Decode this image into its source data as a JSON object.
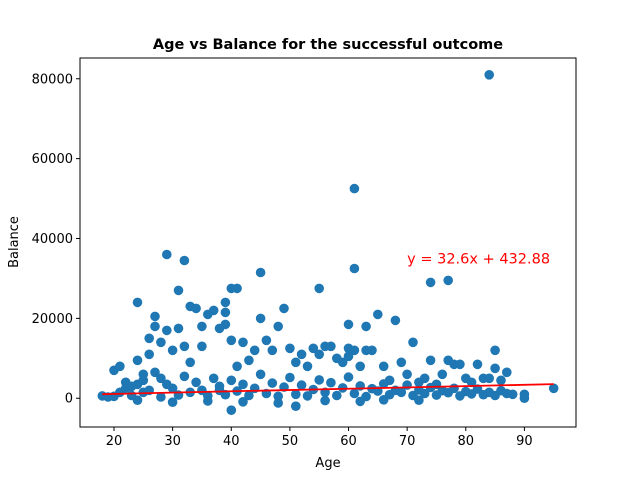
{
  "chart_data": {
    "type": "scatter",
    "title": "Age vs Balance for the successful outcome",
    "xlabel": "Age",
    "ylabel": "Balance",
    "xlim": [
      14.2,
      98.8
    ],
    "ylim": [
      -7200,
      85200
    ],
    "xticks": [
      20,
      30,
      40,
      50,
      60,
      70,
      80,
      90
    ],
    "yticks": [
      0,
      20000,
      40000,
      60000,
      80000
    ],
    "ytick_labels": [
      "0",
      "20000",
      "40000",
      "60000",
      "80000"
    ],
    "grid": false,
    "point_color": "#1f77b4",
    "trend_color": "#ff0000",
    "annotation": {
      "text": "y = 32.6x + 432.88",
      "x": 70,
      "y": 35000,
      "color": "#ff0000"
    },
    "trendline": {
      "slope": 32.6,
      "intercept": 432.88,
      "x_range": [
        18,
        95
      ]
    },
    "points": [
      [
        18,
        600
      ],
      [
        19,
        300
      ],
      [
        20,
        7000
      ],
      [
        21,
        8000
      ],
      [
        22,
        2500
      ],
      [
        23,
        3000
      ],
      [
        24,
        9500
      ],
      [
        24,
        24000
      ],
      [
        25,
        1500
      ],
      [
        25,
        6000
      ],
      [
        26,
        11000
      ],
      [
        26,
        15000
      ],
      [
        27,
        18000
      ],
      [
        27,
        20500
      ],
      [
        28,
        14000
      ],
      [
        28,
        5000
      ],
      [
        29,
        36000
      ],
      [
        29,
        17000
      ],
      [
        30,
        12000
      ],
      [
        31,
        27000
      ],
      [
        31,
        17500
      ],
      [
        32,
        34500
      ],
      [
        32,
        13000
      ],
      [
        33,
        23000
      ],
      [
        33,
        9000
      ],
      [
        34,
        22500
      ],
      [
        35,
        18000
      ],
      [
        35,
        13000
      ],
      [
        36,
        21000
      ],
      [
        37,
        22000
      ],
      [
        38,
        17500
      ],
      [
        38,
        2000
      ],
      [
        39,
        24000
      ],
      [
        39,
        18500
      ],
      [
        39,
        21500
      ],
      [
        40,
        27500
      ],
      [
        40,
        -3000
      ],
      [
        40,
        14500
      ],
      [
        41,
        27500
      ],
      [
        41,
        8000
      ],
      [
        42,
        14000
      ],
      [
        43,
        9500
      ],
      [
        44,
        12000
      ],
      [
        45,
        31500
      ],
      [
        45,
        20000
      ],
      [
        46,
        14500
      ],
      [
        47,
        12000
      ],
      [
        48,
        18000
      ],
      [
        49,
        22500
      ],
      [
        50,
        12500
      ],
      [
        51,
        9000
      ],
      [
        52,
        11000
      ],
      [
        53,
        8000
      ],
      [
        54,
        12500
      ],
      [
        55,
        27500
      ],
      [
        55,
        11000
      ],
      [
        56,
        13000
      ],
      [
        57,
        13000
      ],
      [
        58,
        10000
      ],
      [
        59,
        9000
      ],
      [
        60,
        18500
      ],
      [
        60,
        12500
      ],
      [
        60,
        10500
      ],
      [
        61,
        52500
      ],
      [
        61,
        32500
      ],
      [
        61,
        12000
      ],
      [
        62,
        8000
      ],
      [
        63,
        12000
      ],
      [
        63,
        18000
      ],
      [
        64,
        12000
      ],
      [
        65,
        21000
      ],
      [
        66,
        8000
      ],
      [
        67,
        4500
      ],
      [
        68,
        19500
      ],
      [
        69,
        9000
      ],
      [
        70,
        6000
      ],
      [
        71,
        14000
      ],
      [
        72,
        4000
      ],
      [
        73,
        5000
      ],
      [
        74,
        29000
      ],
      [
        74,
        9500
      ],
      [
        75,
        3500
      ],
      [
        76,
        6000
      ],
      [
        77,
        29500
      ],
      [
        77,
        9500
      ],
      [
        78,
        8500
      ],
      [
        79,
        8500
      ],
      [
        80,
        5000
      ],
      [
        81,
        4000
      ],
      [
        82,
        8500
      ],
      [
        83,
        5000
      ],
      [
        84,
        81000
      ],
      [
        84,
        5000
      ],
      [
        85,
        12000
      ],
      [
        85,
        7500
      ],
      [
        86,
        4500
      ],
      [
        87,
        6500
      ],
      [
        88,
        1000
      ],
      [
        90,
        1000
      ],
      [
        90,
        0
      ],
      [
        95,
        2500
      ],
      [
        20,
        500
      ],
      [
        21,
        1500
      ],
      [
        22,
        4000
      ],
      [
        23,
        700
      ],
      [
        24,
        3500
      ],
      [
        25,
        4500
      ],
      [
        26,
        2000
      ],
      [
        27,
        6500
      ],
      [
        28,
        300
      ],
      [
        29,
        3500
      ],
      [
        30,
        2500
      ],
      [
        31,
        800
      ],
      [
        32,
        5500
      ],
      [
        33,
        1500
      ],
      [
        34,
        4000
      ],
      [
        35,
        2000
      ],
      [
        36,
        600
      ],
      [
        37,
        5000
      ],
      [
        38,
        3000
      ],
      [
        39,
        900
      ],
      [
        40,
        4500
      ],
      [
        41,
        1800
      ],
      [
        42,
        3500
      ],
      [
        43,
        700
      ],
      [
        44,
        2500
      ],
      [
        45,
        6000
      ],
      [
        46,
        1200
      ],
      [
        47,
        3800
      ],
      [
        48,
        500
      ],
      [
        49,
        2800
      ],
      [
        50,
        5200
      ],
      [
        51,
        1000
      ],
      [
        52,
        3300
      ],
      [
        53,
        600
      ],
      [
        54,
        2200
      ],
      [
        55,
        4600
      ],
      [
        56,
        1500
      ],
      [
        57,
        3900
      ],
      [
        58,
        700
      ],
      [
        59,
        2600
      ],
      [
        60,
        5300
      ],
      [
        61,
        1200
      ],
      [
        62,
        3100
      ],
      [
        63,
        400
      ],
      [
        64,
        2400
      ],
      [
        65,
        1800
      ],
      [
        66,
        3600
      ],
      [
        67,
        900
      ],
      [
        68,
        2000
      ],
      [
        69,
        1500
      ],
      [
        70,
        3300
      ],
      [
        71,
        700
      ],
      [
        72,
        2100
      ],
      [
        73,
        1200
      ],
      [
        74,
        2700
      ],
      [
        75,
        800
      ],
      [
        76,
        1900
      ],
      [
        77,
        1400
      ],
      [
        78,
        2500
      ],
      [
        79,
        600
      ],
      [
        80,
        1700
      ],
      [
        81,
        1100
      ],
      [
        82,
        2300
      ],
      [
        83,
        900
      ],
      [
        84,
        1500
      ],
      [
        85,
        700
      ],
      [
        86,
        1900
      ],
      [
        87,
        1200
      ],
      [
        24,
        -500
      ],
      [
        30,
        -1000
      ],
      [
        36,
        -700
      ],
      [
        42,
        -900
      ],
      [
        48,
        -1200
      ],
      [
        51,
        -2000
      ],
      [
        56,
        -600
      ],
      [
        62,
        -800
      ],
      [
        66,
        -400
      ],
      [
        72,
        -500
      ]
    ]
  }
}
